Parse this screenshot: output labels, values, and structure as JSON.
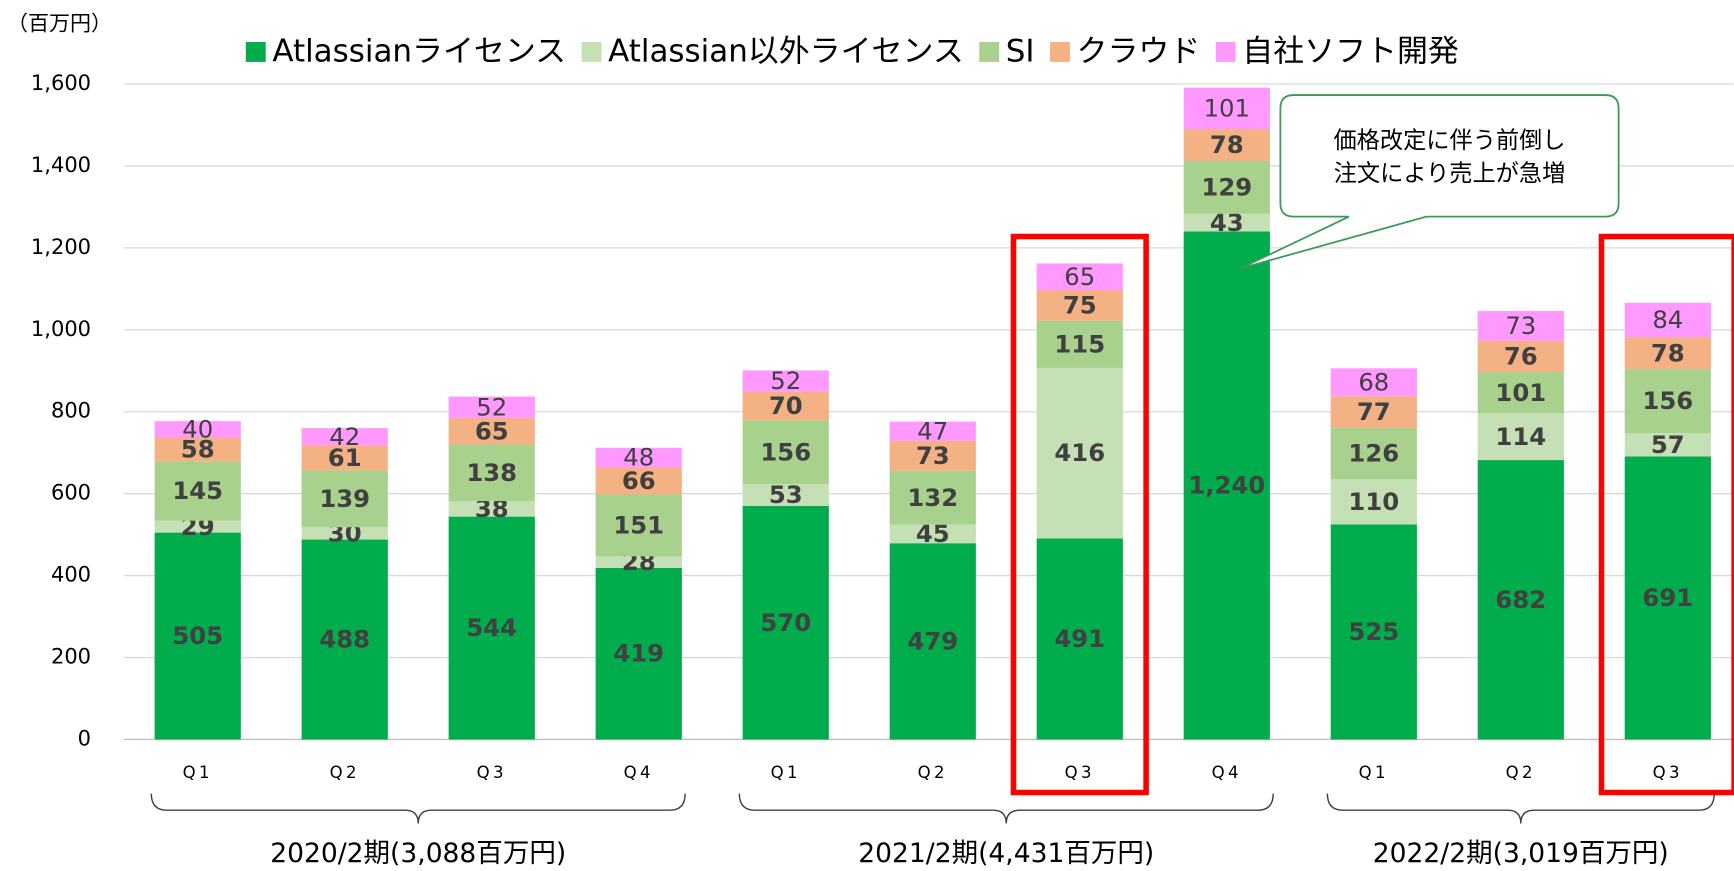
{
  "chart_data": {
    "type": "stacked-bar",
    "unit": "（百万円）",
    "categories": [
      "Q1",
      "Q2",
      "Q3",
      "Q4",
      "Q1",
      "Q2",
      "Q3",
      "Q4",
      "Q1",
      "Q2",
      "Q3"
    ],
    "series": [
      {
        "name": "Atlassianライセンス",
        "color": "#00ac4c",
        "values": [
          505,
          488,
          544,
          419,
          570,
          479,
          491,
          1240,
          525,
          682,
          691
        ],
        "value_labels": [
          "505",
          "488",
          "544",
          "419",
          "570",
          "479",
          "491",
          "1,240",
          "525",
          "682",
          "691"
        ]
      },
      {
        "name": "Atlassian以外ライセンス",
        "color": "#c5e0b4",
        "values": [
          29,
          30,
          38,
          28,
          53,
          45,
          416,
          43,
          110,
          114,
          57
        ]
      },
      {
        "name": "SI",
        "color": "#a9d18e",
        "values": [
          145,
          139,
          138,
          151,
          156,
          132,
          115,
          129,
          126,
          101,
          156
        ]
      },
      {
        "name": "クラウド",
        "color": "#f4b183",
        "values": [
          58,
          61,
          65,
          66,
          70,
          73,
          75,
          78,
          77,
          76,
          78
        ]
      },
      {
        "name": "自社ソフト開発",
        "color": "#ff99ff",
        "values": [
          40,
          42,
          52,
          48,
          52,
          47,
          65,
          101,
          68,
          73,
          84
        ]
      }
    ],
    "ylim": [
      0,
      1600
    ],
    "yticks": [
      0,
      200,
      400,
      600,
      800,
      {
        "value": 1000,
        "label": "1,000"
      },
      {
        "value": 1200,
        "label": "1,200"
      },
      {
        "value": 1400,
        "label": "1,400"
      },
      {
        "value": 1600,
        "label": "1,600"
      }
    ],
    "grid": true,
    "legend": "top",
    "groups": [
      {
        "label": "2020/2期(3,088百万円)",
        "range": [
          0,
          3
        ]
      },
      {
        "label": "2021/2期(4,431百万円)",
        "range": [
          4,
          7
        ]
      },
      {
        "label": "2022/2期(3,019百万円)",
        "range": [
          8,
          10
        ]
      }
    ],
    "highlight": [
      6,
      10
    ],
    "annotation": {
      "lines": [
        "価格改定に伴う前倒し",
        "注文により売上が急増"
      ],
      "target": 7
    }
  }
}
